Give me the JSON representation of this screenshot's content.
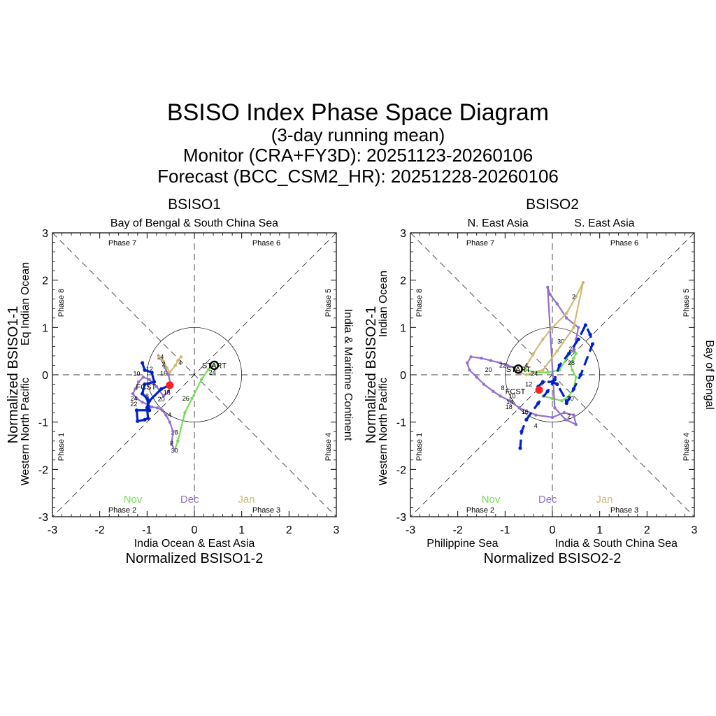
{
  "title": "BSISO Index Phase Space Diagram",
  "subtitle": "(3-day running mean)",
  "monitor": "Monitor (CRA+FY3D): 20251123-20260106",
  "forecast": "Forecast (BCC_CSM2_HR): 20251228-20260106",
  "colors": {
    "nov": "#77dd55",
    "dec": "#9370cc",
    "jan": "#ccbb77",
    "forecast": "#0022cc",
    "start": "#000000",
    "fcst_dot": "#ff2222"
  },
  "months": {
    "nov": "Nov",
    "dec": "Dec",
    "jan": "Jan"
  },
  "labels": {
    "start": "START",
    "fcst": "FCST"
  },
  "chart_data": [
    {
      "type": "line",
      "title": "BSISO1",
      "xlabel": "Normalized BSISO1-2",
      "ylabel": "Normalized BSISO1-1",
      "xlim": [
        -3,
        3
      ],
      "ylim": [
        3,
        -3
      ],
      "xticks": [
        "-3",
        "-2",
        "-1",
        "0",
        "1",
        "2",
        "3"
      ],
      "yticks": [
        "-3",
        "-2",
        "-1",
        "0",
        "1",
        "2",
        "3"
      ],
      "region_top": "Bay of Bengal & South China Sea",
      "region_bottom": "India Ocean & East Asia",
      "region_left_outer": "Eq Indian Ocean",
      "region_left_inner": "Western North Pacific",
      "region_right": "India & Maritime Continent",
      "phases": [
        "Phase 7",
        "Phase 6",
        "Phase 8",
        "Phase 5",
        "Phase 1",
        "Phase 4",
        "Phase 2",
        "Phase 3"
      ],
      "series": [
        {
          "month": "nov",
          "x": [
            0.42,
            0.3,
            0.15,
            -0.05,
            -0.2,
            -0.35,
            -0.42
          ],
          "y": [
            0.2,
            0.12,
            -0.1,
            -0.5,
            -0.8,
            -1.4,
            -1.6
          ],
          "day_labels": [
            {
              "text": "24",
              "x": 0.38,
              "y": 0.05
            },
            {
              "text": "26",
              "x": -0.18,
              "y": -0.5
            },
            {
              "text": "28",
              "x": -0.42,
              "y": -1.22
            },
            {
              "text": "30",
              "x": -0.42,
              "y": -1.6
            }
          ]
        },
        {
          "month": "dec",
          "x": [
            -0.42,
            -0.48,
            -0.45,
            -0.52,
            -0.6,
            -0.68,
            -0.78,
            -0.9,
            -1.0,
            -1.1,
            -1.22,
            -1.3,
            -1.25,
            -1.18,
            -1.08,
            -0.95,
            -0.8,
            -0.65,
            -0.55,
            -0.5,
            -0.55,
            -0.62,
            -0.68,
            -0.72,
            -0.75
          ],
          "y": [
            -1.6,
            -1.45,
            -1.2,
            -1.0,
            -0.85,
            -0.75,
            -0.7,
            -0.68,
            -0.62,
            -0.58,
            -0.5,
            -0.4,
            -0.3,
            -0.15,
            -0.05,
            -0.1,
            -0.25,
            -0.45,
            -0.35,
            -0.2,
            0.0,
            0.15,
            0.3,
            0.35,
            0.38
          ],
          "day_labels": [
            {
              "text": "2",
              "x": -0.48,
              "y": -1.45
            },
            {
              "text": "4",
              "x": -0.52,
              "y": -0.85
            },
            {
              "text": "6",
              "x": -1.0,
              "y": -0.7
            },
            {
              "text": "8",
              "x": -1.0,
              "y": -0.45
            },
            {
              "text": "22",
              "x": -1.28,
              "y": -0.62
            },
            {
              "text": "24",
              "x": -1.28,
              "y": -0.5
            },
            {
              "text": "20",
              "x": -0.7,
              "y": -0.52
            },
            {
              "text": "18",
              "x": -0.58,
              "y": -0.38
            },
            {
              "text": "16",
              "x": -0.65,
              "y": 0.03
            },
            {
              "text": "10",
              "x": -1.22,
              "y": 0.02
            },
            {
              "text": "12",
              "x": -0.95,
              "y": 0.12
            },
            {
              "text": "14",
              "x": -0.72,
              "y": 0.38
            }
          ]
        },
        {
          "month": "jan",
          "x": [
            -0.75,
            -0.65,
            -0.58,
            -0.52,
            -0.4,
            -0.35,
            -0.28
          ],
          "y": [
            0.38,
            0.28,
            0.15,
            0.05,
            0.2,
            0.3,
            0.38
          ],
          "day_labels": [
            {
              "text": "2",
              "x": -0.65,
              "y": 0.22
            },
            {
              "text": "4",
              "x": -0.3,
              "y": 0.25
            }
          ]
        },
        {
          "month": "forecast",
          "x": [
            -0.52,
            -0.7,
            -0.95,
            -1.0,
            -0.98,
            -1.05,
            -1.2,
            -1.22,
            -0.95,
            -1.0,
            -1.1,
            -1.05,
            -0.85,
            -0.9,
            -1.05,
            -1.1
          ],
          "y": [
            -0.22,
            -0.3,
            -0.55,
            -0.7,
            -0.92,
            -0.95,
            -0.98,
            -0.75,
            -0.75,
            -0.5,
            -0.4,
            -0.2,
            -0.15,
            0.05,
            0.1,
            0.25
          ]
        }
      ],
      "start_point": {
        "x": 0.42,
        "y": 0.2
      },
      "fcst_point": {
        "x": -0.52,
        "y": -0.22
      }
    },
    {
      "type": "line",
      "title": "BSISO2",
      "xlabel": "Normalized BSISO2-2",
      "ylabel": "Normalized BSISO2-1",
      "xlim": [
        -3,
        3
      ],
      "ylim": [
        3,
        -3
      ],
      "xticks": [
        "-3",
        "-2",
        "-1",
        "0",
        "1",
        "2",
        "3"
      ],
      "yticks": [
        "-3",
        "-2",
        "-1",
        "0",
        "1",
        "2",
        "3"
      ],
      "region_top_left": "N. East Asia",
      "region_top_right": "S. East Asia",
      "region_bottom_left": "Philippine Sea",
      "region_bottom_right": "India & South China Sea",
      "region_left_outer": "Indian Ocean",
      "region_left_inner": "Western North Pacific",
      "region_right": "Bay of Bengal",
      "phases": [
        "Phase 7",
        "Phase 6",
        "Phase 8",
        "Phase 5",
        "Phase 1",
        "Phase 4",
        "Phase 2",
        "Phase 3"
      ],
      "series": [
        {
          "month": "nov",
          "x": [
            -0.2,
            0.0,
            0.2,
            0.35,
            0.45,
            0.5,
            0.42,
            0.38,
            0.45,
            0.5,
            0.42,
            0.3,
            0.15,
            -0.1,
            -0.35,
            -0.55
          ],
          "y": [
            -0.45,
            -0.5,
            -0.55,
            -0.45,
            -0.3,
            -0.05,
            0.1,
            0.25,
            0.35,
            0.45,
            0.5,
            0.35,
            0.1,
            0.05,
            0.05,
            0.1
          ],
          "day_labels": [
            {
              "text": "30",
              "x": 0.38,
              "y": -0.5
            },
            {
              "text": "28",
              "x": 0.4,
              "y": 0.25
            },
            {
              "text": "26",
              "x": 0.42,
              "y": 0.55
            }
          ]
        },
        {
          "month": "dec",
          "x": [
            0.45,
            0.5,
            0.55,
            0.3,
            0.1,
            -0.05,
            -0.1,
            0.05,
            0.28,
            0.5,
            0.45,
            0.25,
            0.0,
            -0.35,
            -0.7,
            -0.9,
            -1.1,
            -1.25,
            -1.45,
            -1.6,
            -1.75,
            -1.8,
            -1.72,
            -1.5,
            -1.3,
            -1.1,
            -0.95,
            -0.8
          ],
          "y": [
            0.5,
            0.75,
            1.0,
            1.2,
            1.5,
            1.7,
            1.85,
            -0.7,
            -0.95,
            -1.05,
            -0.85,
            -0.8,
            -0.9,
            -0.85,
            -0.7,
            -0.55,
            -0.45,
            -0.35,
            -0.2,
            -0.05,
            0.1,
            0.25,
            0.38,
            0.35,
            0.3,
            0.25,
            0.2,
            0.15
          ],
          "day_labels": [
            {
              "text": "30",
              "x": 0.18,
              "y": 0.7
            },
            {
              "text": "2",
              "x": 0.35,
              "y": -0.88
            },
            {
              "text": "4",
              "x": -0.35,
              "y": -1.08
            },
            {
              "text": "16",
              "x": -0.58,
              "y": -0.78
            },
            {
              "text": "18",
              "x": -0.92,
              "y": -0.68
            },
            {
              "text": "14",
              "x": -0.9,
              "y": -0.58
            },
            {
              "text": "10",
              "x": -0.85,
              "y": -0.45
            },
            {
              "text": "8",
              "x": -1.05,
              "y": -0.28
            },
            {
              "text": "20",
              "x": -1.35,
              "y": 0.1
            },
            {
              "text": "22",
              "x": -1.05,
              "y": 0.2
            }
          ]
        },
        {
          "month": "jan",
          "x": [
            -0.8,
            -0.7,
            -0.55,
            -0.4,
            -0.2,
            0.1,
            0.45,
            0.65,
            0.5,
            0.3,
            0.0,
            -0.2,
            -0.4,
            -0.6
          ],
          "y": [
            0.15,
            0.05,
            0.0,
            0.05,
            0.1,
            0.5,
            1.0,
            1.95,
            1.65,
            1.3,
            1.0,
            0.75,
            0.45,
            0.1
          ],
          "day_labels": [
            {
              "text": "2",
              "x": 0.45,
              "y": 1.65
            },
            {
              "text": "4",
              "x": -0.55,
              "y": 0.2
            },
            {
              "text": "24",
              "x": -0.38,
              "y": 0.02
            },
            {
              "text": "12",
              "x": -0.5,
              "y": -0.2
            }
          ]
        },
        {
          "month": "forecast",
          "x": [
            -0.25,
            -0.3,
            -0.2,
            0.0,
            0.1,
            0.3,
            0.3,
            0.45,
            0.6,
            0.85,
            0.8,
            0.7,
            0.55,
            0.35,
            0.15,
            0.05,
            -0.1,
            -0.3,
            -0.55,
            -0.65,
            -0.68
          ],
          "y": [
            -0.3,
            -0.25,
            -0.15,
            -0.15,
            -0.2,
            -0.55,
            -0.6,
            -0.3,
            0.0,
            0.65,
            0.85,
            1.05,
            0.75,
            0.45,
            0.2,
            -0.1,
            -0.35,
            -0.6,
            -0.95,
            -1.2,
            -1.55
          ]
        }
      ],
      "start_point": {
        "x": -0.72,
        "y": 0.12
      },
      "fcst_point": {
        "x": -0.28,
        "y": -0.32
      }
    }
  ]
}
